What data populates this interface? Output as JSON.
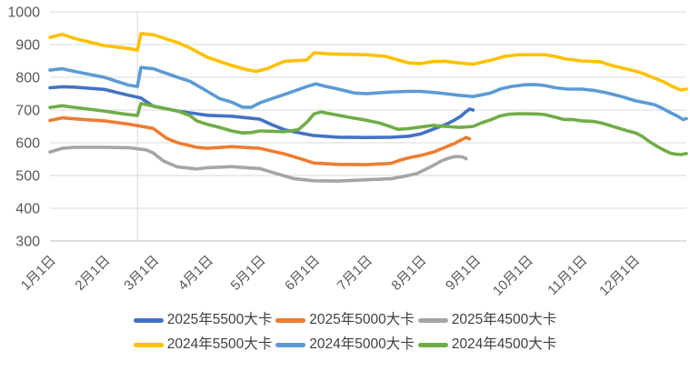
{
  "chart_data": {
    "type": "line",
    "title": "",
    "grid": "horizontal",
    "legend_position": "bottom",
    "axis_text_color": "#595959",
    "gridline_color": "#d9d9d9",
    "axis_line_color": "#bfbfbf",
    "y_axis": {
      "min": 300,
      "max": 1000,
      "step": 100,
      "tick_labels": [
        "300",
        "400",
        "500",
        "600",
        "700",
        "800",
        "900",
        "1000"
      ]
    },
    "x_axis": {
      "tick_labels": [
        "1月1日",
        "2月1日",
        "3月1日",
        "4月1日",
        "5月1日",
        "6月1日",
        "7月1日",
        "8月1日",
        "9月1日",
        "10月1日",
        "11月1日",
        "12月1日"
      ],
      "month_start_days": [
        0,
        31,
        59,
        90,
        120,
        151,
        181,
        212,
        243,
        273,
        304,
        334
      ],
      "days_total": 365,
      "label_rotation_deg": -45
    },
    "vertical_gridline_day": 50,
    "series": [
      {
        "key": "2025-5500",
        "name": "2025年5500大卡",
        "color": "#4472C4",
        "points": [
          [
            0,
            768
          ],
          [
            7,
            771
          ],
          [
            14,
            770
          ],
          [
            31,
            763
          ],
          [
            45,
            745
          ],
          [
            52,
            737
          ],
          [
            59,
            712
          ],
          [
            73,
            697
          ],
          [
            90,
            684
          ],
          [
            104,
            681
          ],
          [
            120,
            672
          ],
          [
            127,
            655
          ],
          [
            134,
            640
          ],
          [
            143,
            630
          ],
          [
            151,
            622
          ],
          [
            165,
            617
          ],
          [
            181,
            616
          ],
          [
            195,
            617
          ],
          [
            205,
            620
          ],
          [
            212,
            627
          ],
          [
            219,
            641
          ],
          [
            226,
            655
          ],
          [
            231,
            668
          ],
          [
            235,
            681
          ],
          [
            238,
            695
          ],
          [
            240,
            703
          ],
          [
            242,
            700
          ]
        ]
      },
      {
        "key": "2025-5000",
        "name": "2025年5000大卡",
        "color": "#ED7D31",
        "points": [
          [
            0,
            668
          ],
          [
            7,
            676
          ],
          [
            14,
            673
          ],
          [
            31,
            667
          ],
          [
            45,
            657
          ],
          [
            59,
            644
          ],
          [
            63,
            628
          ],
          [
            67,
            613
          ],
          [
            73,
            600
          ],
          [
            84,
            586
          ],
          [
            90,
            583
          ],
          [
            104,
            588
          ],
          [
            120,
            583
          ],
          [
            134,
            566
          ],
          [
            144,
            550
          ],
          [
            151,
            538
          ],
          [
            165,
            534
          ],
          [
            181,
            533
          ],
          [
            195,
            537
          ],
          [
            201,
            548
          ],
          [
            207,
            556
          ],
          [
            212,
            561
          ],
          [
            219,
            571
          ],
          [
            226,
            586
          ],
          [
            231,
            597
          ],
          [
            235,
            608
          ],
          [
            238,
            616
          ],
          [
            240,
            612
          ]
        ]
      },
      {
        "key": "2025-4500",
        "name": "2025年4500大卡",
        "color": "#A5A5A5",
        "points": [
          [
            0,
            572
          ],
          [
            7,
            583
          ],
          [
            14,
            586
          ],
          [
            31,
            586
          ],
          [
            45,
            585
          ],
          [
            55,
            578
          ],
          [
            59,
            569
          ],
          [
            65,
            544
          ],
          [
            73,
            526
          ],
          [
            84,
            520
          ],
          [
            90,
            524
          ],
          [
            104,
            527
          ],
          [
            120,
            521
          ],
          [
            130,
            505
          ],
          [
            140,
            490
          ],
          [
            151,
            484
          ],
          [
            165,
            483
          ],
          [
            181,
            487
          ],
          [
            195,
            490
          ],
          [
            203,
            498
          ],
          [
            210,
            506
          ],
          [
            219,
            530
          ],
          [
            224,
            545
          ],
          [
            228,
            553
          ],
          [
            232,
            558
          ],
          [
            236,
            557
          ],
          [
            238,
            551
          ]
        ]
      },
      {
        "key": "2024-5500",
        "name": "2024年5500大卡",
        "color": "#FFC000",
        "points": [
          [
            0,
            922
          ],
          [
            7,
            931
          ],
          [
            14,
            919
          ],
          [
            31,
            897
          ],
          [
            45,
            888
          ],
          [
            50,
            883
          ],
          [
            52,
            933
          ],
          [
            59,
            930
          ],
          [
            73,
            906
          ],
          [
            80,
            890
          ],
          [
            90,
            861
          ],
          [
            104,
            836
          ],
          [
            112,
            824
          ],
          [
            118,
            818
          ],
          [
            124,
            826
          ],
          [
            134,
            849
          ],
          [
            147,
            853
          ],
          [
            151,
            875
          ],
          [
            158,
            872
          ],
          [
            170,
            870
          ],
          [
            181,
            869
          ],
          [
            192,
            864
          ],
          [
            199,
            853
          ],
          [
            205,
            844
          ],
          [
            212,
            842
          ],
          [
            219,
            848
          ],
          [
            226,
            849
          ],
          [
            232,
            845
          ],
          [
            238,
            842
          ],
          [
            242,
            840
          ],
          [
            252,
            852
          ],
          [
            260,
            864
          ],
          [
            268,
            869
          ],
          [
            283,
            869
          ],
          [
            289,
            864
          ],
          [
            294,
            857
          ],
          [
            304,
            850
          ],
          [
            315,
            847
          ],
          [
            320,
            838
          ],
          [
            325,
            831
          ],
          [
            330,
            825
          ],
          [
            335,
            819
          ],
          [
            341,
            808
          ],
          [
            346,
            797
          ],
          [
            351,
            786
          ],
          [
            356,
            772
          ],
          [
            361,
            761
          ],
          [
            364,
            764
          ]
        ]
      },
      {
        "key": "2024-5000",
        "name": "2024年5000大卡",
        "color": "#5B9BD5",
        "points": [
          [
            0,
            822
          ],
          [
            7,
            826
          ],
          [
            14,
            818
          ],
          [
            31,
            800
          ],
          [
            45,
            776
          ],
          [
            50,
            772
          ],
          [
            52,
            830
          ],
          [
            59,
            826
          ],
          [
            73,
            800
          ],
          [
            80,
            788
          ],
          [
            90,
            757
          ],
          [
            97,
            735
          ],
          [
            104,
            724
          ],
          [
            110,
            709
          ],
          [
            115,
            708
          ],
          [
            120,
            722
          ],
          [
            127,
            735
          ],
          [
            137,
            753
          ],
          [
            147,
            772
          ],
          [
            152,
            780
          ],
          [
            158,
            772
          ],
          [
            165,
            764
          ],
          [
            174,
            752
          ],
          [
            181,
            750
          ],
          [
            195,
            755
          ],
          [
            205,
            757
          ],
          [
            212,
            757
          ],
          [
            219,
            754
          ],
          [
            226,
            750
          ],
          [
            234,
            745
          ],
          [
            242,
            741
          ],
          [
            252,
            752
          ],
          [
            258,
            765
          ],
          [
            264,
            772
          ],
          [
            271,
            777
          ],
          [
            277,
            778
          ],
          [
            283,
            775
          ],
          [
            289,
            768
          ],
          [
            296,
            764
          ],
          [
            304,
            764
          ],
          [
            311,
            760
          ],
          [
            318,
            753
          ],
          [
            325,
            744
          ],
          [
            330,
            736
          ],
          [
            335,
            728
          ],
          [
            341,
            722
          ],
          [
            346,
            716
          ],
          [
            351,
            703
          ],
          [
            356,
            689
          ],
          [
            359,
            681
          ],
          [
            362,
            671
          ],
          [
            364,
            674
          ]
        ]
      },
      {
        "key": "2024-4500",
        "name": "2024年4500大卡",
        "color": "#70AD47",
        "points": [
          [
            0,
            708
          ],
          [
            7,
            713
          ],
          [
            14,
            708
          ],
          [
            31,
            697
          ],
          [
            42,
            688
          ],
          [
            50,
            683
          ],
          [
            52,
            720
          ],
          [
            59,
            712
          ],
          [
            73,
            697
          ],
          [
            80,
            683
          ],
          [
            84,
            667
          ],
          [
            90,
            656
          ],
          [
            97,
            647
          ],
          [
            104,
            636
          ],
          [
            110,
            630
          ],
          [
            115,
            631
          ],
          [
            120,
            636
          ],
          [
            134,
            634
          ],
          [
            142,
            640
          ],
          [
            147,
            663
          ],
          [
            151,
            688
          ],
          [
            155,
            694
          ],
          [
            165,
            684
          ],
          [
            174,
            675
          ],
          [
            181,
            669
          ],
          [
            188,
            661
          ],
          [
            195,
            649
          ],
          [
            199,
            641
          ],
          [
            205,
            643
          ],
          [
            212,
            648
          ],
          [
            219,
            653
          ],
          [
            226,
            650
          ],
          [
            234,
            647
          ],
          [
            242,
            650
          ],
          [
            247,
            661
          ],
          [
            252,
            670
          ],
          [
            257,
            681
          ],
          [
            262,
            687
          ],
          [
            268,
            689
          ],
          [
            278,
            688
          ],
          [
            283,
            686
          ],
          [
            289,
            678
          ],
          [
            294,
            671
          ],
          [
            299,
            671
          ],
          [
            304,
            667
          ],
          [
            311,
            665
          ],
          [
            315,
            661
          ],
          [
            320,
            653
          ],
          [
            325,
            645
          ],
          [
            330,
            637
          ],
          [
            335,
            630
          ],
          [
            339,
            619
          ],
          [
            343,
            603
          ],
          [
            347,
            590
          ],
          [
            351,
            578
          ],
          [
            355,
            568
          ],
          [
            358,
            565
          ],
          [
            361,
            564
          ],
          [
            364,
            567
          ]
        ]
      }
    ],
    "legend_rows": [
      [
        0,
        1,
        2
      ],
      [
        3,
        4,
        5
      ]
    ]
  }
}
